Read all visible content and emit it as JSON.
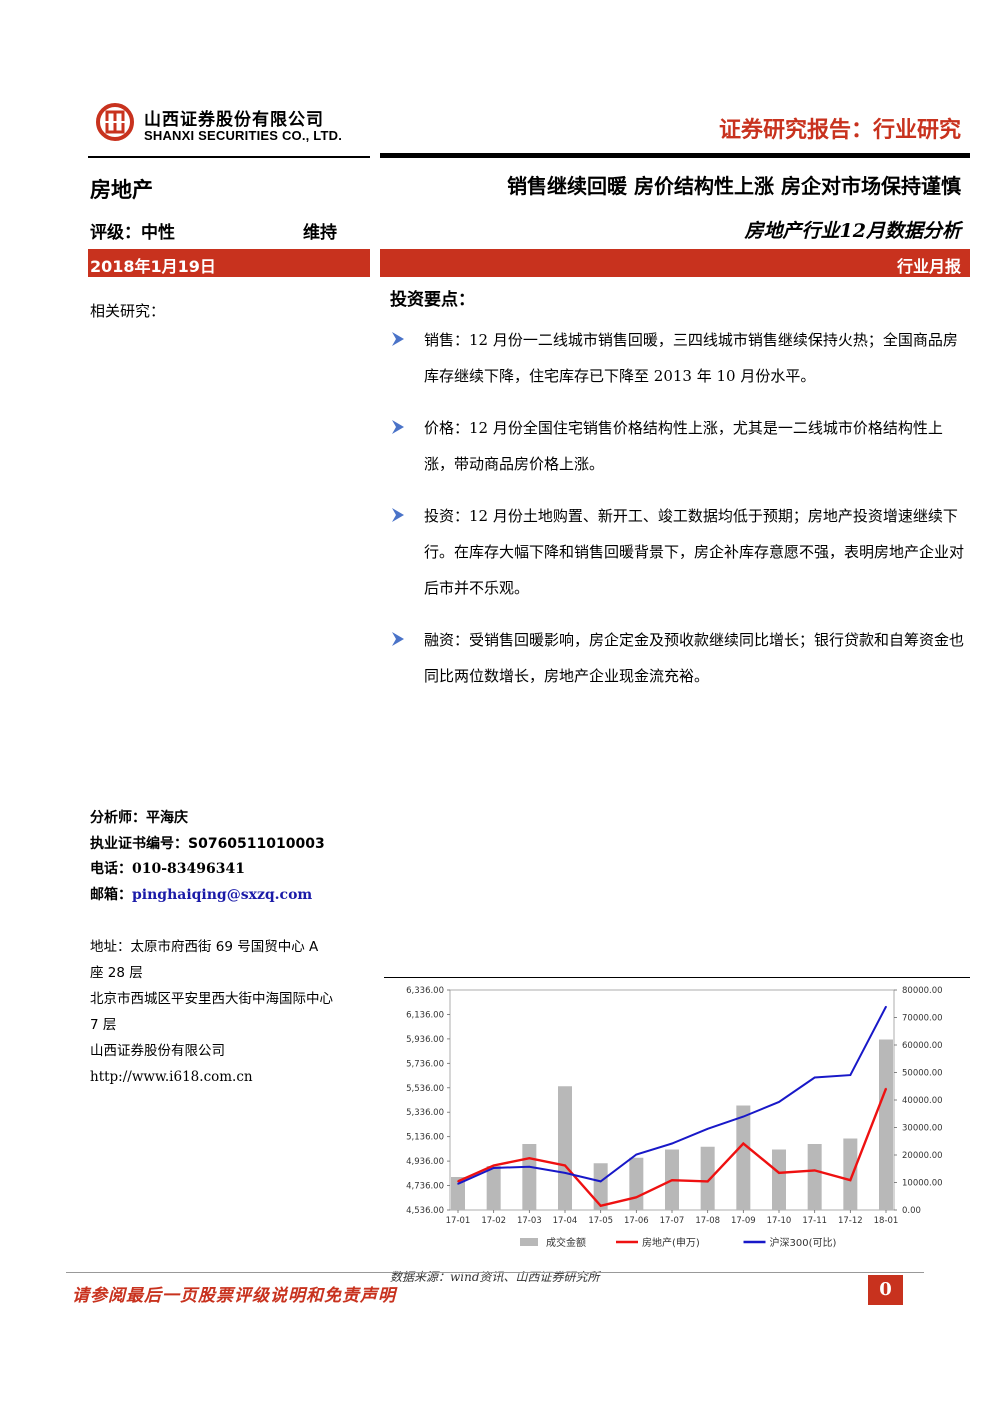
{
  "header": {
    "company_cn": "山西证券股份有限公司",
    "company_en": "SHANXI SECURITIES CO., LTD.",
    "report_type": "证券研究报告：行业研究",
    "brand_color": "#c8321e"
  },
  "meta": {
    "sector": "房地产",
    "headline": "销售继续回暖 房价结构性上涨 房企对市场保持谨慎",
    "rating_label": "评级：中性",
    "rating_action": "维持",
    "subtitle": "房地产行业12月数据分析",
    "date": "2018年1月19日",
    "report_kind": "行业月报",
    "related_research": "相关研究："
  },
  "key_points": {
    "title": "投资要点：",
    "items": [
      "销售：12 月份一二线城市销售回暖，三四线城市销售继续保持火热；全国商品房库存继续下降，住宅库存已下降至 2013 年 10 月份水平。",
      "价格：12 月份全国住宅销售价格结构性上涨，尤其是一二线城市价格结构性上涨，带动商品房价格上涨。",
      "投资：12 月份土地购置、新开工、竣工数据均低于预期；房地产投资增速继续下行。在库存大幅下降和销售回暖背景下，房企补库存意愿不强，表明房地产企业对后市并不乐观。",
      "融资：受销售回暖影响，房企定金及预收款继续同比增长；银行贷款和自筹资金也同比两位数增长，房地产企业现金流充裕。"
    ]
  },
  "analyst": {
    "name_label": "分析师：",
    "name": "平海庆",
    "cert_label": "执业证书编号：",
    "cert": "S0760511010003",
    "phone_label": "电话：",
    "phone": "010-83496341",
    "email_label": "邮箱：",
    "email": "pinghaiqing@sxzq.com"
  },
  "address": {
    "line1": "地址：太原市府西街 69 号国贸中心 A",
    "line2": "座 28 层",
    "line3": "北京市西城区平安里西大街中海国际中心",
    "line4": "7 层",
    "line5": "山西证券股份有限公司",
    "url": "http://www.i618.com.cn"
  },
  "chart_data": {
    "type": "line",
    "x": [
      "17-01",
      "17-02",
      "17-03",
      "17-04",
      "17-05",
      "17-06",
      "17-07",
      "17-08",
      "17-09",
      "17-10",
      "17-11",
      "17-12",
      "18-01"
    ],
    "left_axis_ticks": [
      "6,336.00",
      "6,136.00",
      "5,936.00",
      "5,736.00",
      "5,536.00",
      "5,336.00",
      "5,136.00",
      "4,936.00",
      "4,736.00",
      "4,536.00"
    ],
    "right_axis_ticks": [
      "80000.00",
      "70000.00",
      "60000.00",
      "50000.00",
      "40000.00",
      "30000.00",
      "20000.00",
      "10000.00",
      "0.00"
    ],
    "left_ylim": [
      4536,
      6336
    ],
    "right_ylim": [
      0,
      80000
    ],
    "series": [
      {
        "name": "成交金额",
        "kind": "bar",
        "axis": "right",
        "color": "#b8b8b8",
        "values": [
          12000,
          16000,
          24000,
          45000,
          17000,
          19000,
          22000,
          23000,
          38000,
          22000,
          24000,
          26000,
          62000
        ]
      },
      {
        "name": "房地产(申万)",
        "kind": "line",
        "axis": "left",
        "color": "#ee1111",
        "values": [
          4770,
          4900,
          4960,
          4900,
          4570,
          4640,
          4780,
          4770,
          5080,
          4840,
          4860,
          4780,
          5530
        ]
      },
      {
        "name": "沪深300(可比)",
        "kind": "line",
        "axis": "left",
        "color": "#1818c8",
        "values": [
          4750,
          4880,
          4890,
          4840,
          4770,
          4990,
          5080,
          5200,
          5300,
          5420,
          5620,
          5640,
          6200
        ]
      }
    ],
    "legend_position": "bottom",
    "source": "数据来源：wind资讯、山西证券研究所"
  },
  "footer": {
    "disclaimer": "请参阅最后一页股票评级说明和免责声明",
    "page": "0"
  }
}
